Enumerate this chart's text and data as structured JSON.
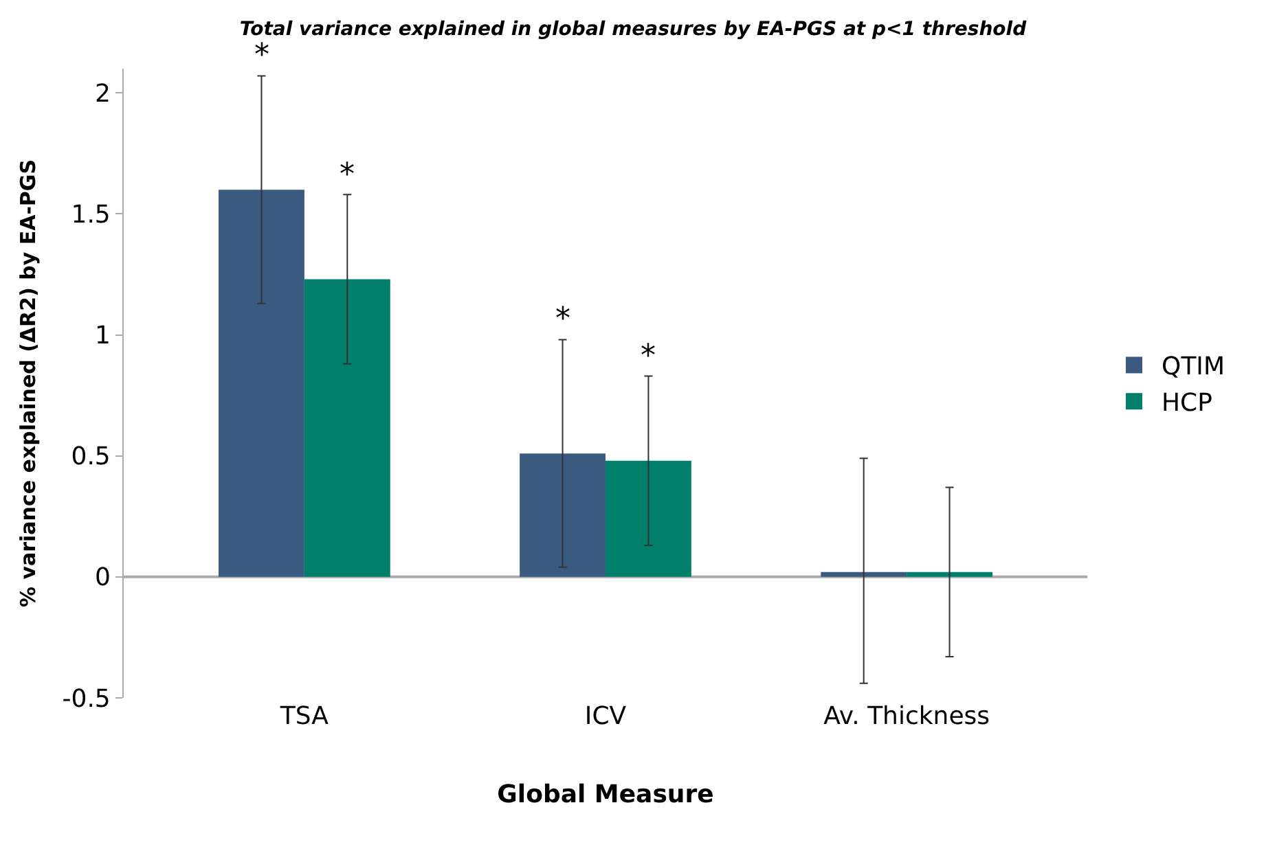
{
  "chart_data": {
    "type": "bar",
    "title": "Total variance explained in global measures by EA-PGS at p<1 threshold",
    "xlabel": "Global Measure",
    "ylabel": "% variance explained (ΔR2) by EA-PGS",
    "categories": [
      "TSA",
      "ICV",
      "Av. Thickness"
    ],
    "series": [
      {
        "name": "QTIM",
        "color": "#3a5a80",
        "values": [
          1.6,
          0.51,
          0.02
        ],
        "errors": [
          [
            1.13,
            2.07
          ],
          [
            0.04,
            0.98
          ],
          [
            -0.44,
            0.49
          ]
        ]
      },
      {
        "name": "HCP",
        "color": "#007f6c",
        "values": [
          1.23,
          0.48,
          0.02
        ],
        "errors": [
          [
            0.88,
            1.58
          ],
          [
            0.13,
            0.83
          ],
          [
            -0.33,
            0.37
          ]
        ]
      }
    ],
    "ylim": [
      -0.5,
      2.1
    ],
    "yticks": [
      -0.5,
      0,
      0.5,
      1,
      1.5,
      2
    ],
    "grid": false,
    "legend": "right",
    "annotations": [
      "*",
      "*",
      "*",
      "*"
    ],
    "ref_lines": [
      {
        "axis": "y",
        "value": 0,
        "color": "#aaaaaa"
      }
    ]
  }
}
